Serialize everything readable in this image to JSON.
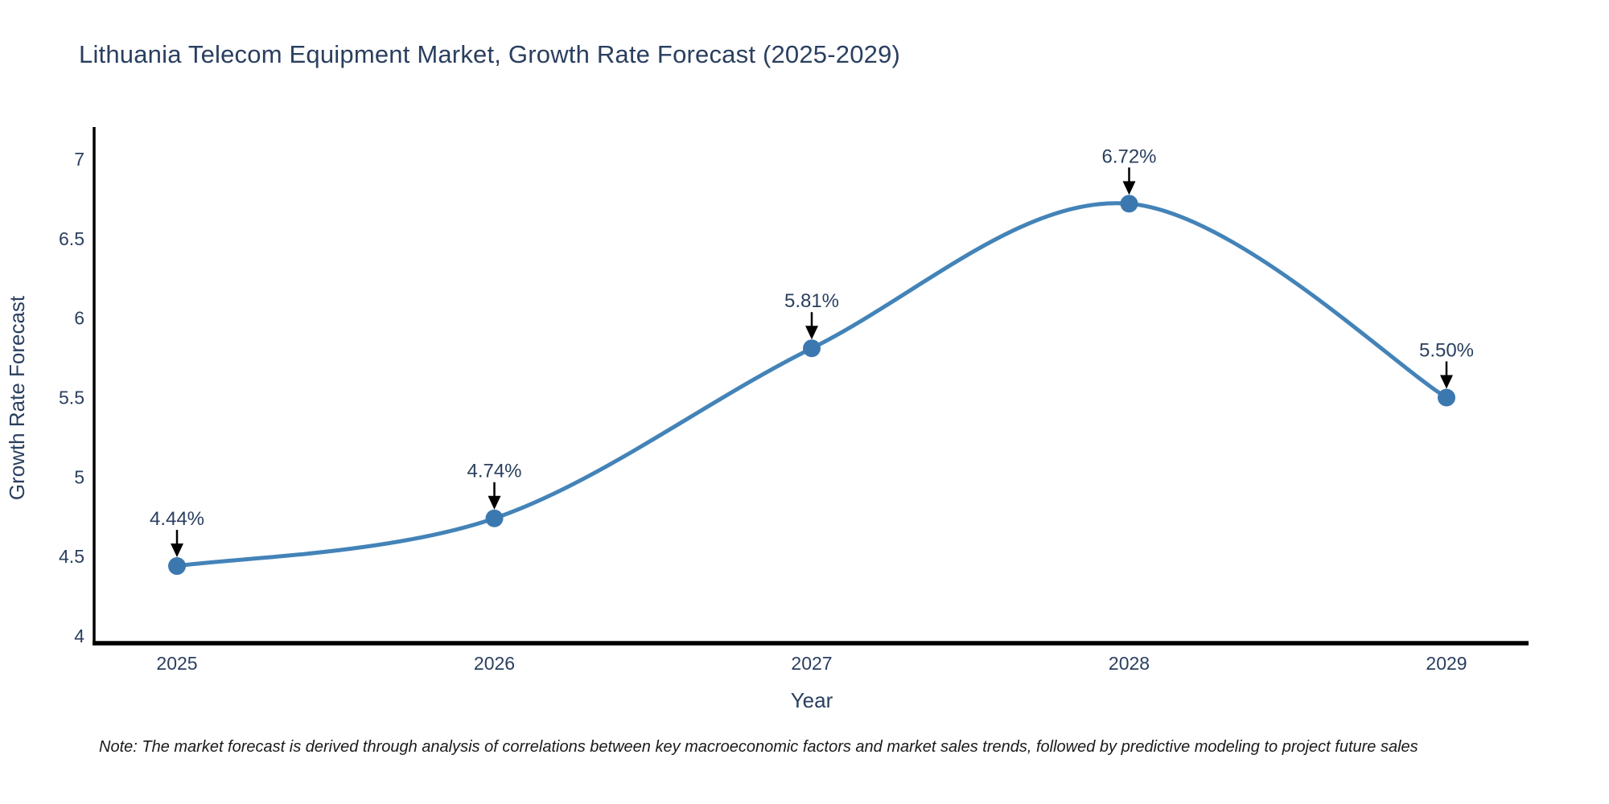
{
  "title": "Lithuania Telecom Equipment Market, Growth Rate Forecast (2025-2029)",
  "note": "Note: The market forecast is derived through analysis of correlations between key macroeconomic factors and market sales trends, followed by predictive modeling to project future sales",
  "colors": {
    "line": "#4383b8",
    "marker": "#3c78b0",
    "text": "#2a3f5f",
    "axis": "#000000",
    "annotation_arrow": "#000000",
    "background": "#ffffff"
  },
  "chart_data": {
    "type": "line",
    "title": "Lithuania Telecom Equipment Market, Growth Rate Forecast (2025-2029)",
    "x": [
      2025,
      2026,
      2027,
      2028,
      2029
    ],
    "series": [
      {
        "name": "Growth Rate Forecast",
        "values": [
          4.44,
          4.74,
          5.81,
          6.72,
          5.5
        ]
      }
    ],
    "annotations": [
      "4.44%",
      "4.74%",
      "5.81%",
      "6.72%",
      "5.50%"
    ],
    "xlabel": "Year",
    "ylabel": "Growth Rate Forecast",
    "ylim": [
      4,
      7.25
    ],
    "yticks": [
      "4",
      "4.5",
      "5",
      "5.5",
      "6",
      "6.5",
      "7"
    ],
    "ytick_values": [
      4,
      4.5,
      5,
      5.5,
      6,
      6.5,
      7
    ],
    "xticks": [
      "2025",
      "2026",
      "2027",
      "2028",
      "2029"
    ],
    "line_shape": "spline",
    "grid": false,
    "legend_position": "none"
  }
}
